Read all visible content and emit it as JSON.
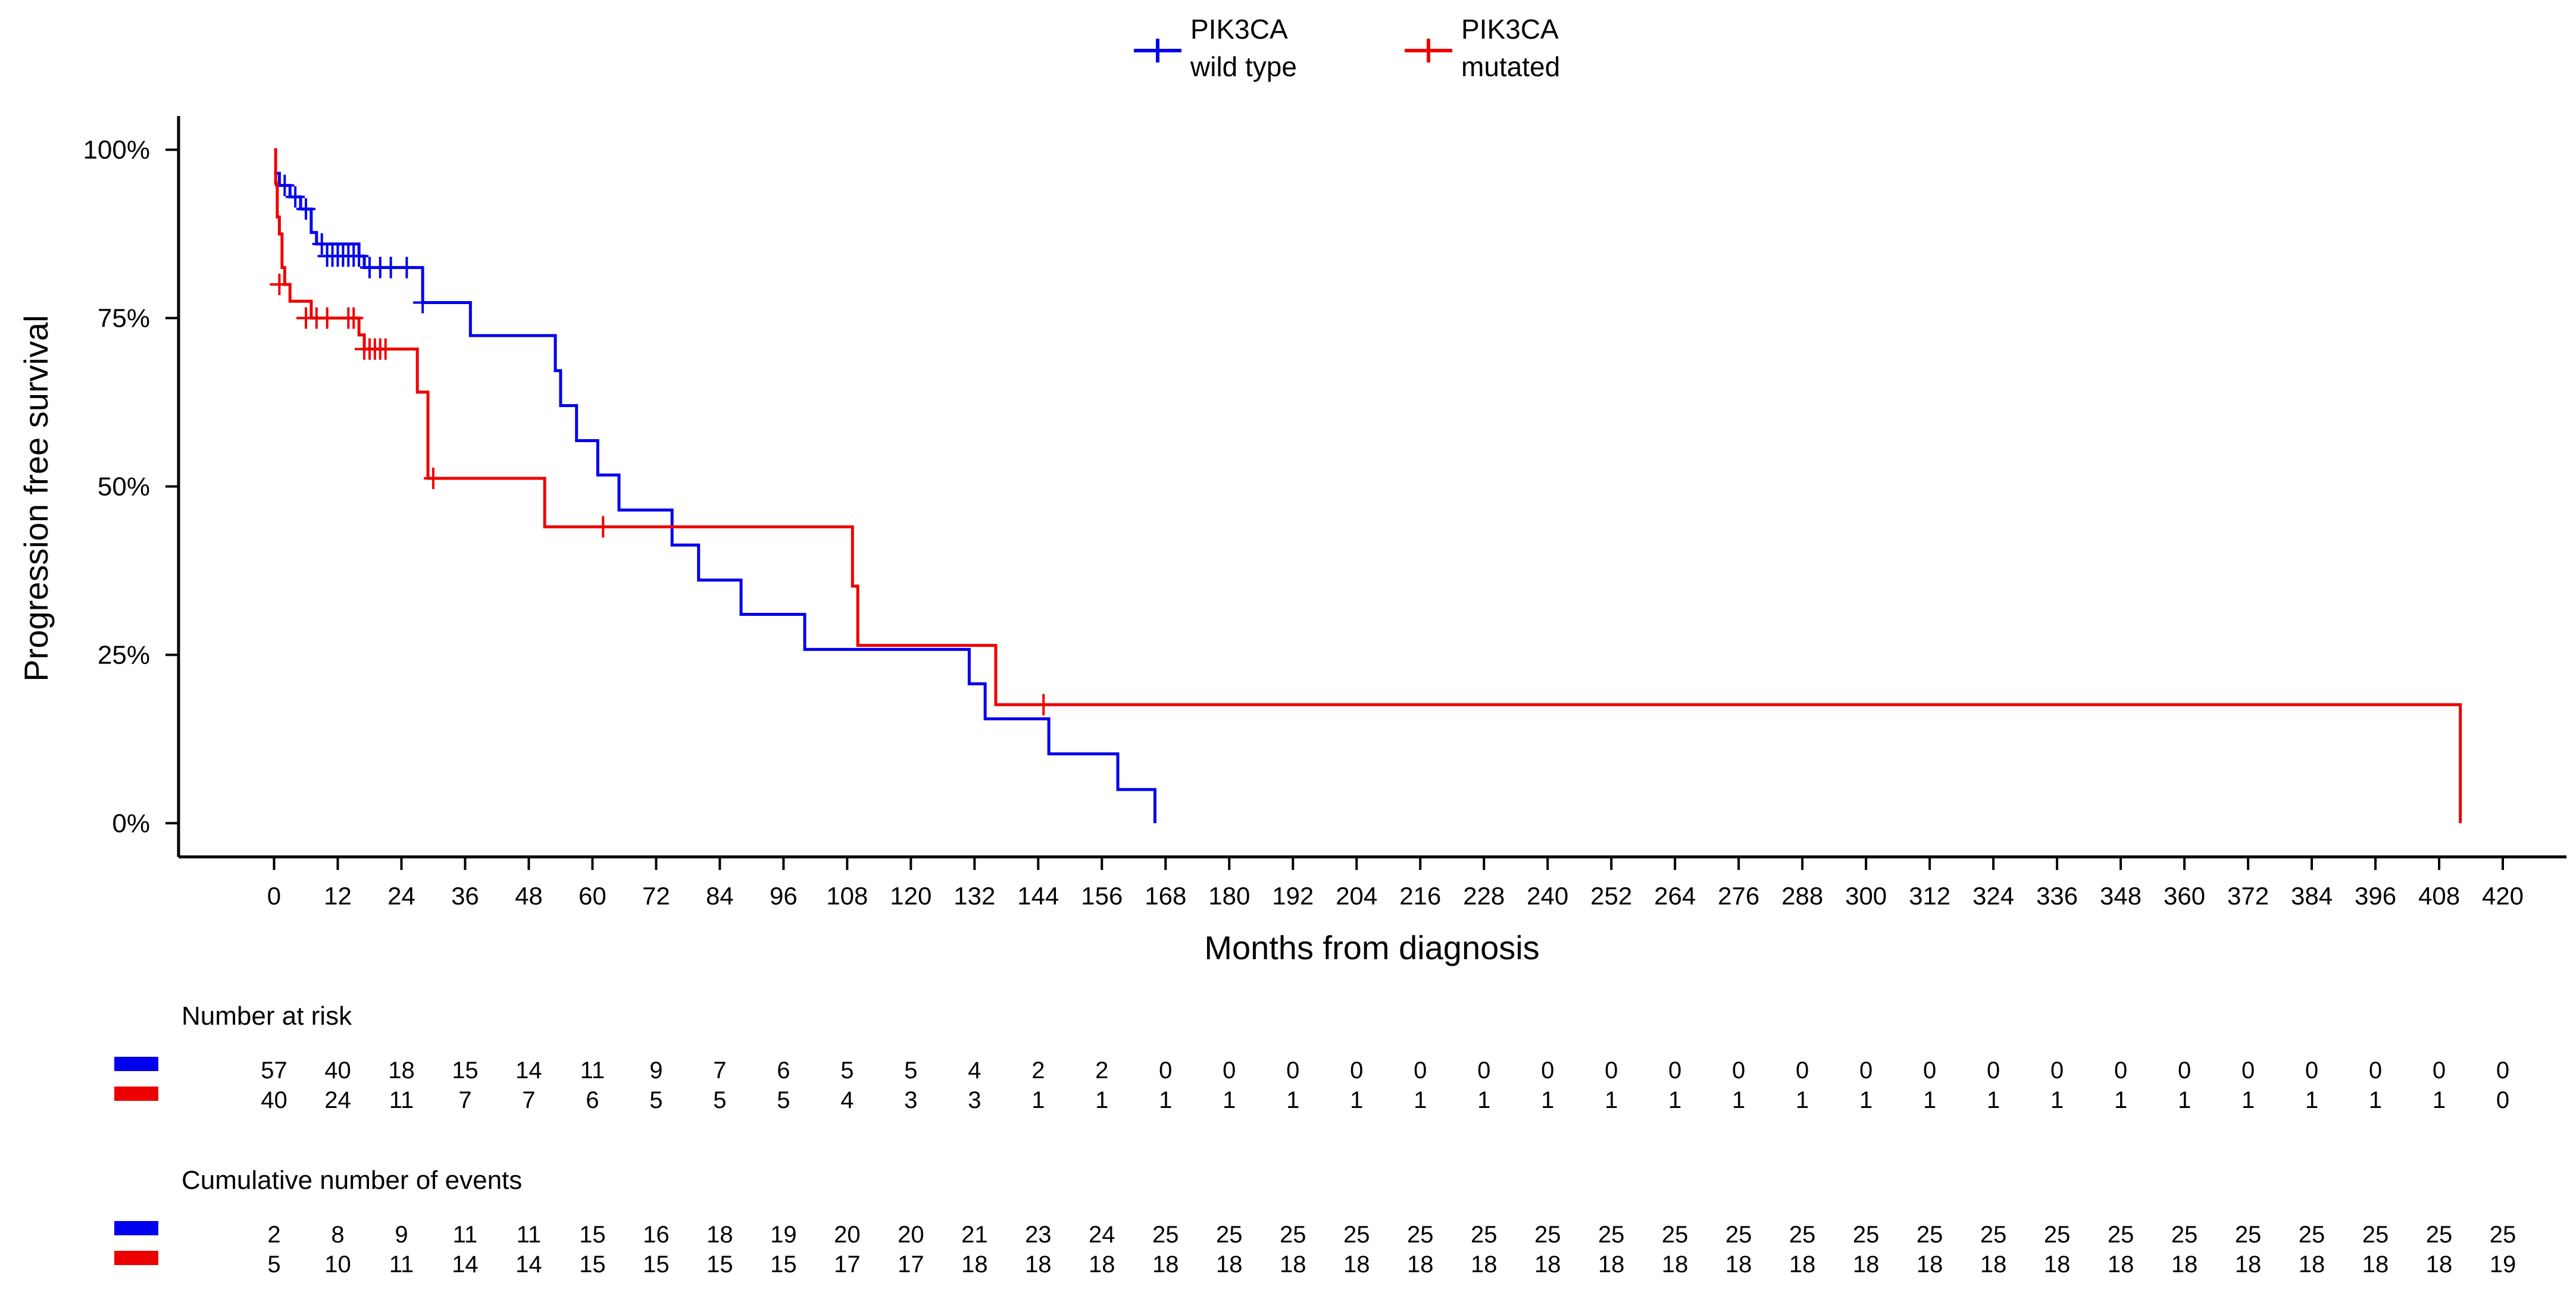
{
  "chart_data": {
    "type": "line",
    "subtype": "kaplan-meier",
    "title": "",
    "xlabel": "Months from diagnosis",
    "ylabel": "Progression free survival",
    "xlim": [
      -18,
      432
    ],
    "ylim": [
      -0.05,
      1.05
    ],
    "x_ticks": [
      0,
      12,
      24,
      36,
      48,
      60,
      72,
      84,
      96,
      108,
      120,
      132,
      144,
      156,
      168,
      180,
      192,
      204,
      216,
      228,
      240,
      252,
      264,
      276,
      288,
      300,
      312,
      324,
      336,
      348,
      360,
      372,
      384,
      396,
      408,
      420
    ],
    "y_ticks": [
      {
        "value": 0,
        "label": "0%"
      },
      {
        "value": 0.25,
        "label": "25%"
      },
      {
        "value": 0.5,
        "label": "50%"
      },
      {
        "value": 0.75,
        "label": "75%"
      },
      {
        "value": 1.0,
        "label": "100%"
      }
    ],
    "legend_position": "top-center",
    "series": [
      {
        "name_line1": "PIK3CA",
        "name_line2": "wild type",
        "color": "#0000ee",
        "steps": [
          [
            0,
            0.965
          ],
          [
            1,
            0.947
          ],
          [
            3,
            0.93
          ],
          [
            5,
            0.912
          ],
          [
            7,
            0.877
          ],
          [
            8,
            0.86
          ],
          [
            16,
            0.842
          ],
          [
            17,
            0.825
          ],
          [
            28,
            0.773
          ],
          [
            37,
            0.724
          ],
          [
            53,
            0.672
          ],
          [
            54,
            0.62
          ],
          [
            57,
            0.568
          ],
          [
            61,
            0.517
          ],
          [
            65,
            0.465
          ],
          [
            75,
            0.413
          ],
          [
            80,
            0.361
          ],
          [
            88,
            0.31
          ],
          [
            100,
            0.258
          ],
          [
            131,
            0.207
          ],
          [
            134,
            0.155
          ],
          [
            146,
            0.103
          ],
          [
            159,
            0.05
          ],
          [
            166,
            0.0
          ]
        ],
        "censored": [
          [
            2,
            0.947
          ],
          [
            4,
            0.93
          ],
          [
            6,
            0.912
          ],
          [
            9,
            0.86
          ],
          [
            10,
            0.842
          ],
          [
            11,
            0.842
          ],
          [
            12,
            0.842
          ],
          [
            13,
            0.842
          ],
          [
            14,
            0.842
          ],
          [
            15,
            0.842
          ],
          [
            16,
            0.842
          ],
          [
            18,
            0.825
          ],
          [
            20,
            0.825
          ],
          [
            22,
            0.825
          ],
          [
            25,
            0.825
          ],
          [
            28,
            0.773
          ]
        ]
      },
      {
        "name_line1": "PIK3CA",
        "name_line2": "mutated",
        "color": "#ee0000",
        "steps": [
          [
            0,
            1.0
          ],
          [
            0.3,
            0.95
          ],
          [
            0.6,
            0.9
          ],
          [
            1,
            0.875
          ],
          [
            1.5,
            0.825
          ],
          [
            2,
            0.8
          ],
          [
            3,
            0.775
          ],
          [
            7,
            0.75
          ],
          [
            16,
            0.725
          ],
          [
            17,
            0.704
          ],
          [
            27,
            0.64
          ],
          [
            29,
            0.512
          ],
          [
            51,
            0.44
          ],
          [
            109,
            0.352
          ],
          [
            110,
            0.264
          ],
          [
            136,
            0.176
          ],
          [
            412,
            0.0
          ]
        ],
        "censored": [
          [
            1,
            0.8
          ],
          [
            6,
            0.75
          ],
          [
            8,
            0.75
          ],
          [
            10,
            0.75
          ],
          [
            14,
            0.75
          ],
          [
            15,
            0.75
          ],
          [
            17,
            0.704
          ],
          [
            18,
            0.704
          ],
          [
            19,
            0.704
          ],
          [
            20,
            0.704
          ],
          [
            21,
            0.704
          ],
          [
            30,
            0.512
          ],
          [
            62,
            0.44
          ],
          [
            145,
            0.176
          ]
        ]
      }
    ],
    "risk_table": {
      "title": "Number at risk",
      "rows": [
        {
          "color": "#0000ee",
          "values": [
            57,
            40,
            18,
            15,
            14,
            11,
            9,
            7,
            6,
            5,
            5,
            4,
            2,
            2,
            0,
            0,
            0,
            0,
            0,
            0,
            0,
            0,
            0,
            0,
            0,
            0,
            0,
            0,
            0,
            0,
            0,
            0,
            0,
            0,
            0,
            0
          ]
        },
        {
          "color": "#ee0000",
          "values": [
            40,
            24,
            11,
            7,
            7,
            6,
            5,
            5,
            5,
            4,
            3,
            3,
            1,
            1,
            1,
            1,
            1,
            1,
            1,
            1,
            1,
            1,
            1,
            1,
            1,
            1,
            1,
            1,
            1,
            1,
            1,
            1,
            1,
            1,
            1,
            0
          ]
        }
      ]
    },
    "events_table": {
      "title": "Cumulative number of events",
      "rows": [
        {
          "color": "#0000ee",
          "values": [
            2,
            8,
            9,
            11,
            11,
            15,
            16,
            18,
            19,
            20,
            20,
            21,
            23,
            24,
            25,
            25,
            25,
            25,
            25,
            25,
            25,
            25,
            25,
            25,
            25,
            25,
            25,
            25,
            25,
            25,
            25,
            25,
            25,
            25,
            25,
            25
          ]
        },
        {
          "color": "#ee0000",
          "values": [
            5,
            10,
            11,
            14,
            14,
            15,
            15,
            15,
            15,
            17,
            17,
            18,
            18,
            18,
            18,
            18,
            18,
            18,
            18,
            18,
            18,
            18,
            18,
            18,
            18,
            18,
            18,
            18,
            18,
            18,
            18,
            18,
            18,
            18,
            18,
            19
          ]
        }
      ]
    }
  }
}
